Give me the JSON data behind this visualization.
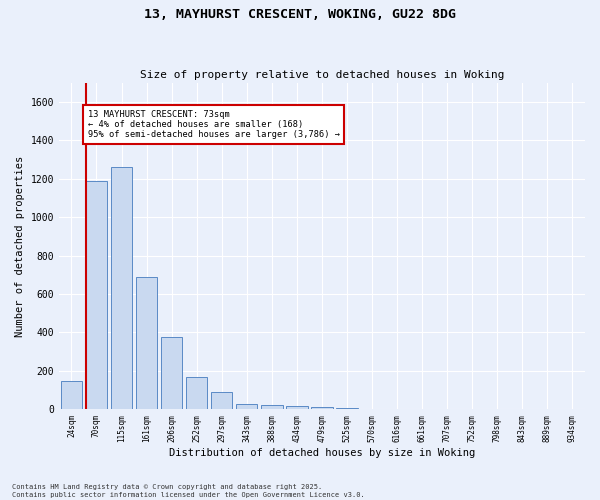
{
  "title_line1": "13, MAYHURST CRESCENT, WOKING, GU22 8DG",
  "title_line2": "Size of property relative to detached houses in Woking",
  "xlabel": "Distribution of detached houses by size in Woking",
  "ylabel": "Number of detached properties",
  "bar_labels": [
    "24sqm",
    "70sqm",
    "115sqm",
    "161sqm",
    "206sqm",
    "252sqm",
    "297sqm",
    "343sqm",
    "388sqm",
    "434sqm",
    "479sqm",
    "525sqm",
    "570sqm",
    "616sqm",
    "661sqm",
    "707sqm",
    "752sqm",
    "798sqm",
    "843sqm",
    "889sqm",
    "934sqm"
  ],
  "bar_heights": [
    150,
    1190,
    1260,
    690,
    375,
    170,
    90,
    30,
    20,
    15,
    10,
    5,
    0,
    0,
    0,
    0,
    0,
    0,
    0,
    0,
    0
  ],
  "bar_color": "#c9d9f0",
  "bar_edge_color": "#5a8ac6",
  "vline_x": 1.0,
  "vline_color": "#cc0000",
  "annotation_text": "13 MAYHURST CRESCENT: 73sqm\n← 4% of detached houses are smaller (168)\n95% of semi-detached houses are larger (3,786) →",
  "annotation_box_color": "#ffffff",
  "annotation_box_edge": "#cc0000",
  "ylim": [
    0,
    1700
  ],
  "yticks": [
    0,
    200,
    400,
    600,
    800,
    1000,
    1200,
    1400,
    1600
  ],
  "background_color": "#eaf0fb",
  "grid_color": "#ffffff",
  "footer_line1": "Contains HM Land Registry data © Crown copyright and database right 2025.",
  "footer_line2": "Contains public sector information licensed under the Open Government Licence v3.0."
}
